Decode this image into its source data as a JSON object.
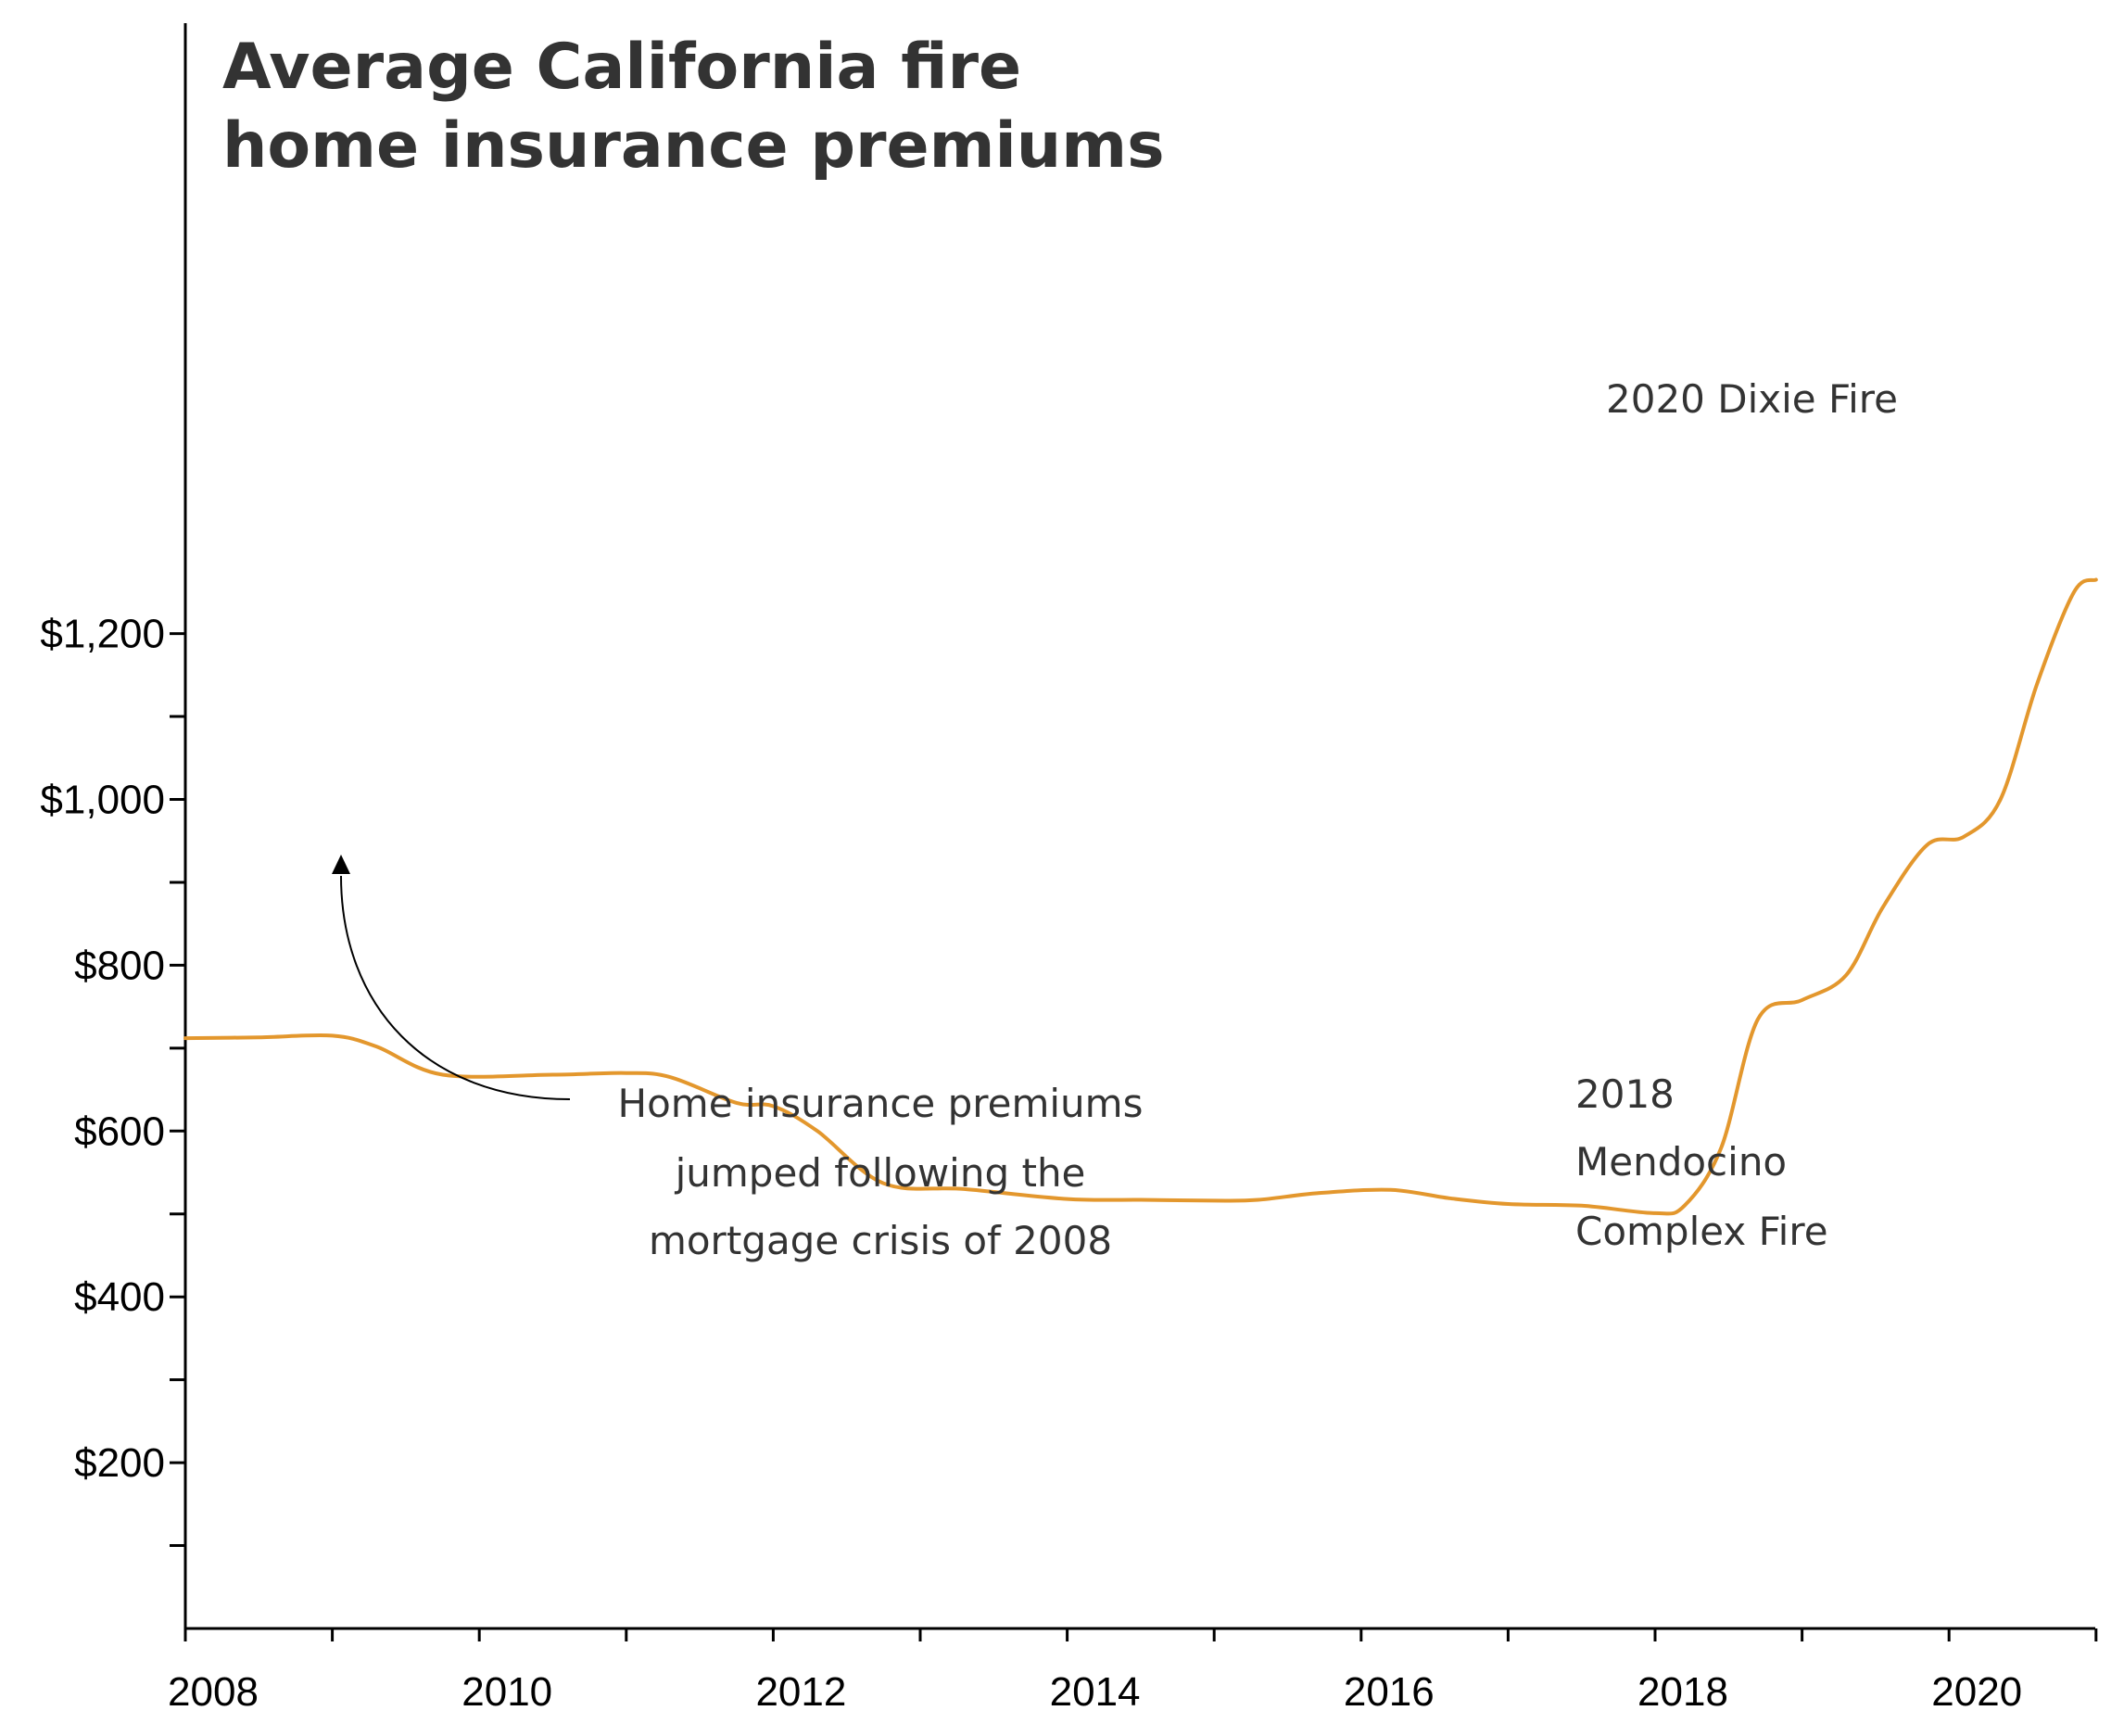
{
  "chart_data": {
    "type": "line",
    "title": [
      "Average California fire",
      "home insurance premiums"
    ],
    "xlabel": "",
    "ylabel": "",
    "xlim": [
      2008,
      2021
    ],
    "ylim": [
      0,
      1300
    ],
    "x_ticks": [
      2008,
      2010,
      2012,
      2014,
      2016,
      2018,
      2020
    ],
    "x_minor_ticks": [
      2009,
      2011,
      2013,
      2015,
      2017,
      2019,
      2021
    ],
    "y_ticks": [
      200,
      400,
      600,
      800,
      1000,
      1200
    ],
    "y_tick_labels": [
      "$200",
      "$400",
      "$600",
      "$800",
      "$1,000",
      "$1,200"
    ],
    "y_minor_ticks": [
      100,
      300,
      500,
      700,
      900,
      1100
    ],
    "x_tick_labels": [
      "2008",
      "2010",
      "2012",
      "2014",
      "2016",
      "2018",
      "2020"
    ],
    "grid": false,
    "line_color": "#e3972d",
    "series": [
      {
        "x": [
          2008,
          2008.5,
          2009,
          2009.3,
          2009.75,
          2010.5,
          2011,
          2011.3,
          2011.75,
          2012,
          2012.3,
          2012.75,
          2013.3,
          2014,
          2014.5,
          2015,
          2015.3,
          2015.7,
          2016.2,
          2016.6,
          2017,
          2017.5,
          2018,
          2018.2,
          2018.45,
          2018.7,
          2019,
          2019.3,
          2019.55,
          2019.85,
          2020.1,
          2020.35,
          2020.6,
          2020.85,
          2021
        ],
        "values": [
          712,
          713,
          715,
          702,
          668,
          668,
          670,
          665,
          634,
          630,
          600,
          537,
          530,
          518,
          517,
          516,
          517,
          525,
          529,
          519,
          512,
          510,
          501,
          510,
          580,
          735,
          758,
          788,
          870,
          945,
          955,
          1000,
          1140,
          1250,
          1265
        ]
      }
    ],
    "annotations": [
      {
        "lines": [
          "Home insurance premiums",
          "jumped following the",
          "mortgage crisis of 2008"
        ],
        "anchor": "middle",
        "arrow": true
      },
      {
        "lines": [
          "2018",
          "Mendocino",
          "Complex Fire"
        ],
        "anchor": "start",
        "arrow": false
      },
      {
        "lines": [
          "2020 Dixie Fire"
        ],
        "anchor": "start",
        "arrow": false
      }
    ]
  }
}
